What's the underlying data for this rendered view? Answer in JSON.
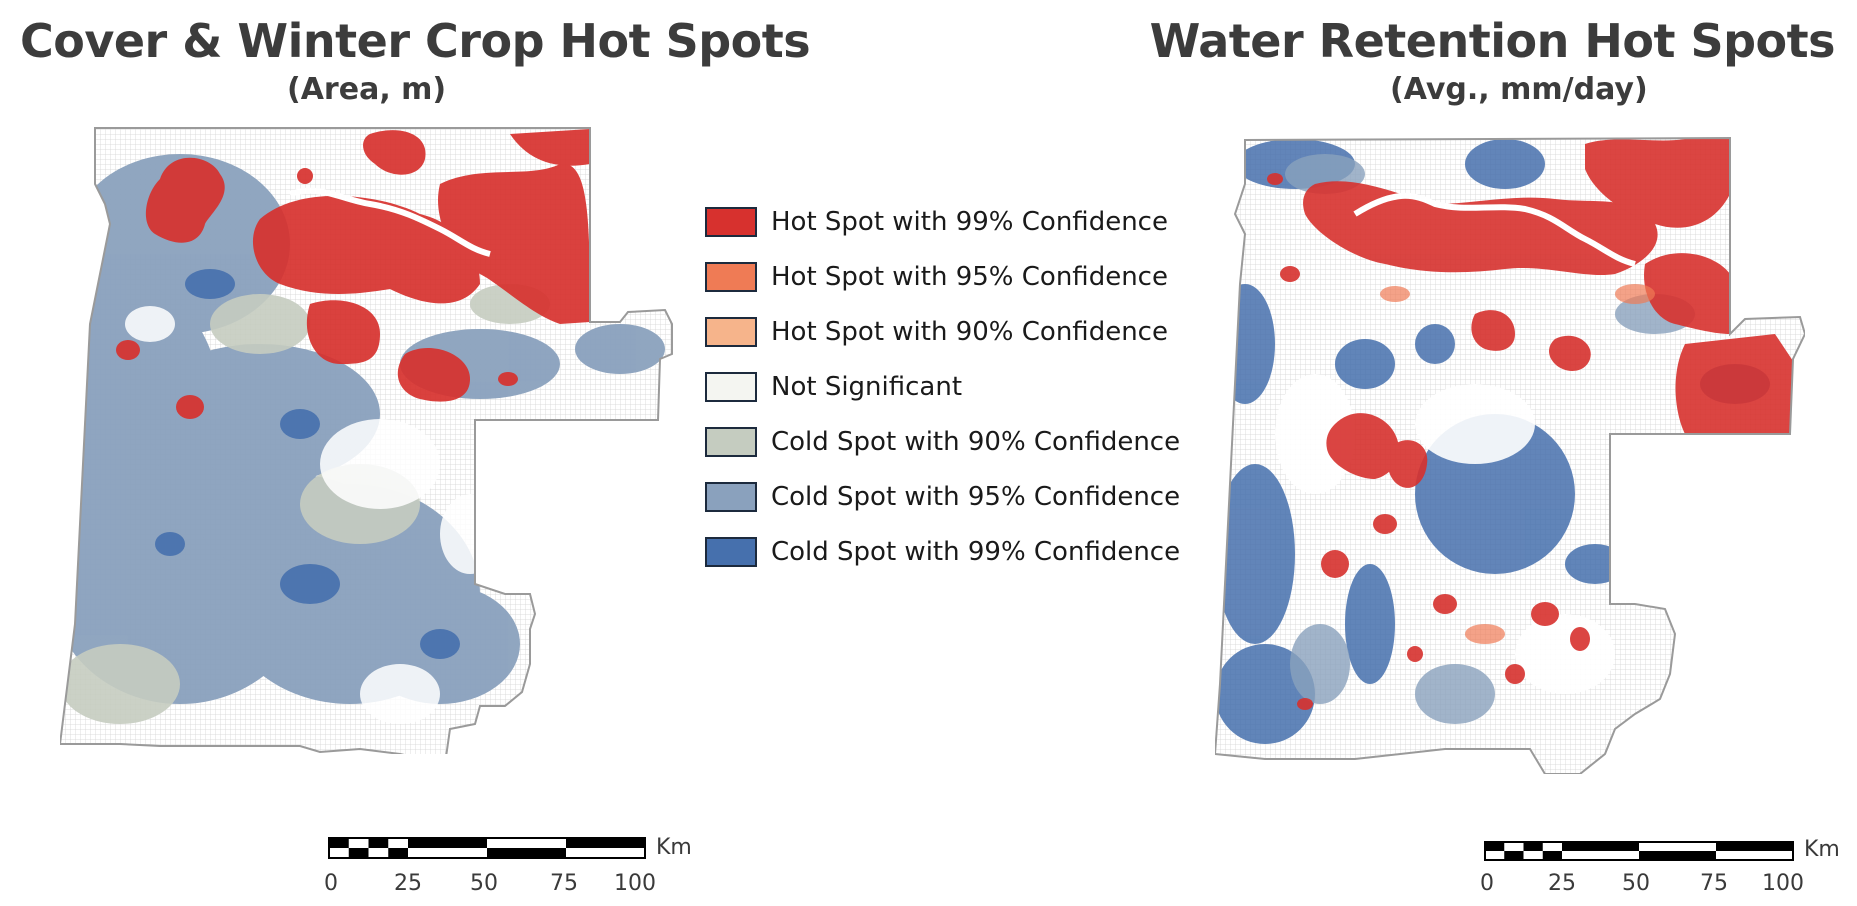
{
  "left_map": {
    "title": "Cover & Winter Crop Hot Spots",
    "subtitle": "(Area, m)"
  },
  "right_map": {
    "title": "Water Retention Hot Spots",
    "subtitle": "(Avg., mm/day)"
  },
  "legend": {
    "items": [
      {
        "label": "Hot Spot with 99% Confidence",
        "color": "#d7312e"
      },
      {
        "label": "Hot Spot with 95% Confidence",
        "color": "#ef7b55"
      },
      {
        "label": "Hot Spot with 90% Confidence",
        "color": "#f6b48b"
      },
      {
        "label": "Not Significant",
        "color": "#f4f5f1"
      },
      {
        "label": "Cold Spot with 90% Confidence",
        "color": "#c5ccc0"
      },
      {
        "label": "Cold Spot with 95% Confidence",
        "color": "#8aa1bd"
      },
      {
        "label": "Cold Spot with 99% Confidence",
        "color": "#4670ad"
      }
    ]
  },
  "scale_bar": {
    "unit": "Km",
    "ticks": [
      "0",
      "25",
      "50",
      "75",
      "100"
    ]
  },
  "map_colors": {
    "background_grid": "#d9d9d9",
    "outline": "#9a9a9a"
  }
}
